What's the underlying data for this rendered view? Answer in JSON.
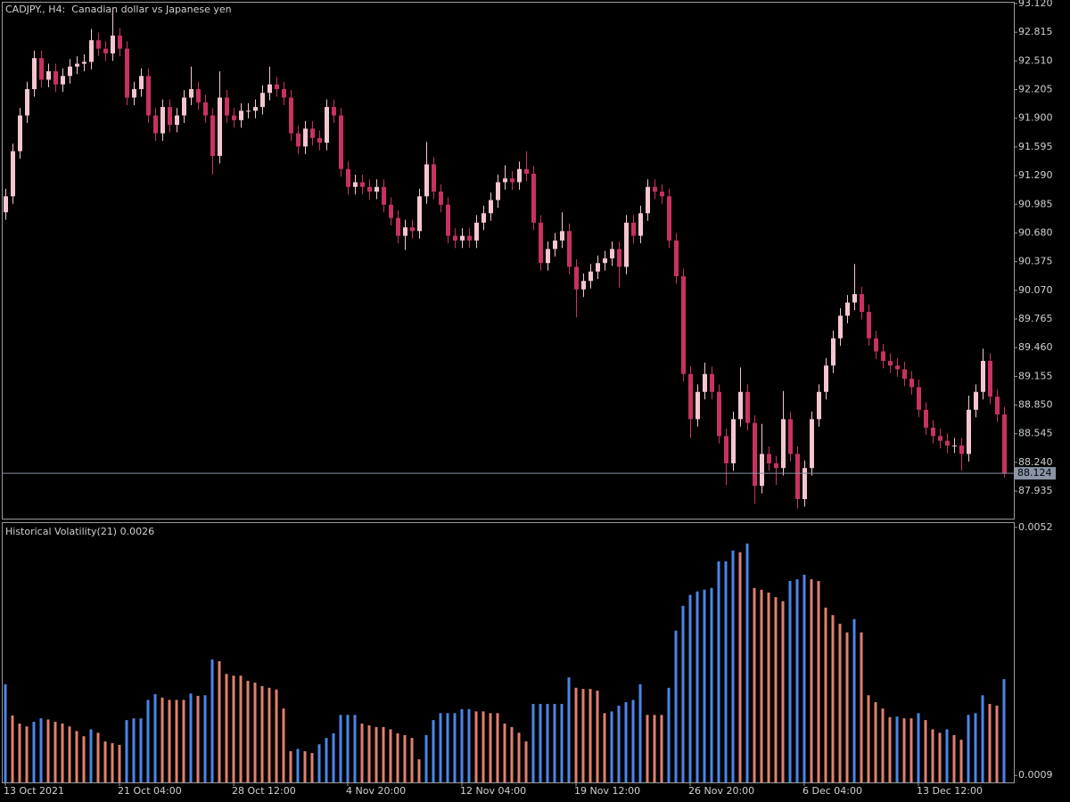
{
  "chart_data": [
    {
      "type": "candlestick",
      "title": "CADJPY., H4:  Canadian dollar vs Japanese yen",
      "open": [
        90.9,
        91.07,
        91.55,
        91.93,
        92.21,
        92.54,
        92.31,
        92.4,
        92.26,
        92.35,
        92.45,
        92.48,
        92.5,
        92.73,
        92.64,
        92.59,
        92.78,
        92.64,
        92.12,
        92.21,
        92.35,
        91.93,
        91.74,
        92.02,
        91.83,
        91.93,
        92.12,
        92.21,
        92.07,
        91.93,
        91.5,
        92.12,
        91.93,
        91.88,
        91.98,
        91.98,
        92.02,
        92.17,
        92.26,
        92.21,
        92.12,
        91.74,
        91.6,
        91.79,
        91.69,
        91.64,
        92.02,
        91.93,
        91.36,
        91.17,
        91.22,
        91.17,
        91.12,
        91.17,
        90.98,
        90.84,
        90.65,
        90.74,
        90.7,
        91.07,
        91.41,
        91.12,
        90.98,
        90.65,
        90.6,
        90.65,
        90.6,
        90.79,
        90.89,
        91.03,
        91.22,
        91.26,
        91.22,
        91.36,
        91.31,
        90.79,
        90.36,
        90.51,
        90.6,
        90.7,
        90.32,
        90.08,
        90.17,
        90.27,
        90.36,
        90.41,
        90.51,
        90.32,
        90.79,
        90.65,
        90.89,
        91.17,
        91.12,
        91.07,
        90.6,
        90.22,
        89.18,
        88.7,
        88.99,
        89.18,
        88.99,
        88.52,
        88.23,
        88.7,
        88.99,
        88.66,
        87.99,
        88.33,
        88.23,
        88.18,
        88.7,
        88.33,
        87.85,
        88.18,
        88.7,
        88.99,
        89.27,
        89.56,
        89.8,
        89.94,
        90.03,
        89.84,
        89.56,
        89.42,
        89.32,
        89.27,
        89.23,
        89.13,
        89.04,
        88.8,
        88.61,
        88.52,
        88.47,
        88.42,
        88.42,
        88.33,
        88.8,
        88.99,
        89.32,
        88.94,
        88.75
      ],
      "high": [
        91.15,
        91.63,
        92.01,
        92.29,
        92.62,
        92.62,
        92.48,
        92.48,
        92.43,
        92.53,
        92.56,
        92.58,
        92.85,
        92.81,
        92.72,
        93.05,
        92.86,
        92.72,
        92.29,
        92.43,
        92.43,
        92.01,
        92.1,
        92.1,
        92.01,
        92.2,
        92.45,
        92.29,
        92.15,
        92.01,
        92.4,
        92.2,
        92.01,
        92.06,
        92.06,
        92.1,
        92.25,
        92.45,
        92.34,
        92.29,
        92.2,
        91.82,
        91.87,
        91.87,
        91.77,
        92.1,
        92.1,
        92.01,
        91.44,
        91.3,
        91.3,
        91.25,
        91.25,
        91.25,
        91.06,
        90.92,
        90.82,
        90.82,
        91.15,
        91.65,
        91.49,
        91.2,
        91.06,
        90.73,
        90.73,
        90.73,
        90.87,
        90.97,
        91.11,
        91.3,
        91.4,
        91.34,
        91.44,
        91.55,
        91.39,
        90.87,
        90.59,
        90.68,
        90.9,
        90.78,
        90.4,
        90.25,
        90.35,
        90.44,
        90.49,
        90.59,
        90.59,
        90.87,
        90.87,
        90.97,
        91.25,
        91.25,
        91.2,
        91.15,
        90.68,
        90.3,
        89.26,
        89.07,
        89.3,
        89.26,
        89.07,
        88.6,
        88.78,
        89.25,
        89.07,
        88.74,
        88.65,
        88.41,
        88.31,
        89.0,
        88.78,
        88.41,
        88.26,
        88.78,
        89.07,
        89.35,
        89.64,
        89.88,
        90.02,
        90.35,
        90.11,
        89.92,
        89.64,
        89.5,
        89.4,
        89.35,
        89.31,
        89.21,
        89.12,
        88.88,
        88.69,
        88.6,
        88.55,
        88.5,
        88.5,
        88.95,
        89.07,
        89.45,
        89.4,
        89.02,
        88.83
      ],
      "low": [
        90.82,
        90.99,
        91.47,
        91.85,
        92.13,
        92.23,
        92.23,
        92.18,
        92.18,
        92.27,
        92.37,
        92.4,
        92.42,
        92.56,
        92.51,
        92.51,
        92.56,
        92.04,
        92.04,
        92.13,
        91.85,
        91.66,
        91.66,
        91.75,
        91.75,
        91.85,
        92.04,
        91.99,
        91.85,
        91.3,
        91.42,
        91.85,
        91.8,
        91.8,
        91.9,
        91.9,
        91.94,
        92.09,
        92.13,
        92.04,
        91.66,
        91.52,
        91.52,
        91.61,
        91.56,
        91.56,
        91.85,
        91.28,
        91.09,
        91.09,
        91.09,
        91.04,
        91.04,
        90.9,
        90.76,
        90.57,
        90.5,
        90.62,
        90.62,
        90.99,
        91.04,
        90.9,
        90.57,
        90.52,
        90.52,
        90.52,
        90.52,
        90.71,
        90.81,
        90.95,
        91.14,
        91.14,
        91.14,
        91.23,
        90.71,
        90.28,
        90.28,
        90.43,
        90.52,
        90.24,
        89.78,
        90.0,
        90.09,
        90.19,
        90.28,
        90.33,
        90.1,
        90.24,
        90.57,
        90.57,
        90.81,
        91.04,
        90.99,
        90.52,
        90.14,
        89.1,
        88.5,
        88.62,
        88.91,
        88.91,
        88.44,
        88.0,
        88.15,
        88.62,
        88.58,
        87.8,
        87.91,
        88.15,
        88.0,
        88.1,
        88.25,
        87.75,
        87.77,
        88.1,
        88.62,
        88.91,
        89.19,
        89.48,
        89.72,
        89.86,
        89.76,
        89.48,
        89.34,
        89.24,
        89.19,
        89.15,
        89.05,
        88.96,
        88.72,
        88.53,
        88.44,
        88.39,
        88.34,
        88.34,
        88.15,
        88.25,
        88.72,
        88.91,
        88.86,
        88.67,
        88.08
      ],
      "close": [
        91.07,
        91.55,
        91.93,
        92.21,
        92.54,
        92.31,
        92.4,
        92.26,
        92.35,
        92.45,
        92.48,
        92.5,
        92.73,
        92.64,
        92.59,
        92.78,
        92.64,
        92.12,
        92.21,
        92.35,
        91.93,
        91.74,
        92.02,
        91.83,
        91.93,
        92.12,
        92.21,
        92.07,
        91.93,
        91.5,
        92.12,
        91.93,
        91.88,
        91.98,
        91.98,
        92.02,
        92.17,
        92.26,
        92.21,
        92.12,
        91.74,
        91.6,
        91.79,
        91.69,
        91.64,
        92.02,
        91.93,
        91.36,
        91.17,
        91.22,
        91.17,
        91.12,
        91.17,
        90.98,
        90.84,
        90.65,
        90.74,
        90.7,
        91.07,
        91.41,
        91.12,
        90.98,
        90.65,
        90.6,
        90.65,
        90.6,
        90.79,
        90.89,
        91.03,
        91.22,
        91.26,
        91.22,
        91.36,
        91.31,
        90.79,
        90.36,
        90.51,
        90.6,
        90.7,
        90.32,
        90.08,
        90.17,
        90.27,
        90.36,
        90.41,
        90.51,
        90.32,
        90.79,
        90.65,
        90.89,
        91.17,
        91.12,
        91.07,
        90.6,
        90.22,
        89.18,
        88.7,
        88.99,
        89.18,
        88.99,
        88.52,
        88.23,
        88.7,
        88.99,
        88.66,
        87.99,
        88.33,
        88.23,
        88.18,
        88.7,
        88.33,
        87.85,
        88.18,
        88.7,
        88.99,
        89.27,
        89.56,
        89.8,
        89.94,
        90.03,
        89.84,
        89.56,
        89.42,
        89.32,
        89.27,
        89.23,
        89.13,
        89.04,
        88.8,
        88.61,
        88.52,
        88.47,
        88.42,
        88.42,
        88.33,
        88.8,
        88.99,
        89.32,
        88.94,
        88.75,
        88.12
      ],
      "up_color": "#f5c6cf",
      "down_color": "#c8325f",
      "ylim": [
        87.642,
        93.139
      ],
      "yticks": [
        {
          "value": 93.12,
          "label": "93.120"
        },
        92.815,
        {
          "value": 92.51,
          "label": "92.510"
        },
        92.205,
        {
          "value": 91.9,
          "label": "91.900"
        },
        91.595,
        {
          "value": 91.29,
          "label": "91.290"
        },
        90.985,
        {
          "value": 90.68,
          "label": "90.680"
        },
        90.375,
        {
          "value": 90.07,
          "label": "90.070"
        },
        89.765,
        {
          "value": 89.46,
          "label": "89.460"
        },
        89.155,
        {
          "value": 88.85,
          "label": "88.850"
        },
        88.545,
        {
          "value": 88.24,
          "label": "88.240"
        },
        87.935
      ],
      "current_price": 88.124,
      "current_price_color": "#8a94a6"
    },
    {
      "type": "bar",
      "title": "Historical Volatility(21) 0.0026",
      "categories": [
        "13 Oct 2021",
        null,
        null,
        null,
        null,
        null,
        null,
        null,
        null,
        null,
        null,
        null,
        null,
        null,
        null,
        null,
        "21 Oct 04:00",
        null,
        null,
        null,
        null,
        null,
        null,
        null,
        null,
        null,
        null,
        null,
        null,
        null,
        null,
        null,
        "28 Oct 12:00",
        null,
        null,
        null,
        null,
        null,
        null,
        null,
        null,
        null,
        null,
        null,
        null,
        null,
        null,
        null,
        "4 Nov 20:00",
        null,
        null,
        null,
        null,
        null,
        null,
        null,
        null,
        null,
        null,
        null,
        null,
        null,
        null,
        null,
        "12 Nov 04:00",
        null,
        null,
        null,
        null,
        null,
        null,
        null,
        null,
        null,
        null,
        null,
        null,
        null,
        null,
        null,
        "19 Nov 12:00",
        null,
        null,
        null,
        null,
        null,
        null,
        null,
        null,
        null,
        null,
        null,
        null,
        null,
        null,
        null,
        "26 Nov 20:00",
        null,
        null,
        null,
        null,
        null,
        null,
        null,
        null,
        null,
        null,
        null,
        null,
        null,
        null,
        null,
        "6 Dec 04:00",
        null,
        null,
        null,
        null,
        null,
        null,
        null,
        null,
        null,
        null,
        null,
        null,
        null,
        null,
        null,
        "13 Dec 12:00",
        null,
        null,
        null,
        null,
        null,
        null,
        null,
        null,
        null,
        null,
        null,
        null
      ],
      "values": [
        0.00248,
        0.00194,
        0.0018,
        0.00175,
        0.00183,
        0.00189,
        0.00187,
        0.00183,
        0.0018,
        0.00175,
        0.00167,
        0.00158,
        0.0017,
        0.00164,
        0.00149,
        0.00146,
        0.00143,
        0.00186,
        0.00189,
        0.00189,
        0.00221,
        0.00231,
        0.00225,
        0.00221,
        0.00221,
        0.00221,
        0.00232,
        0.00228,
        0.00229,
        0.00291,
        0.00288,
        0.00266,
        0.00263,
        0.00263,
        0.00254,
        0.00251,
        0.00245,
        0.00242,
        0.00239,
        0.00206,
        0.00132,
        0.00136,
        0.00132,
        0.00129,
        0.00144,
        0.00155,
        0.00163,
        0.00195,
        0.00195,
        0.00195,
        0.0018,
        0.00177,
        0.00174,
        0.00174,
        0.0017,
        0.00163,
        0.0016,
        0.00155,
        0.00118,
        0.0016,
        0.00186,
        0.00198,
        0.00198,
        0.00198,
        0.00205,
        0.00205,
        0.00201,
        0.00201,
        0.00198,
        0.00198,
        0.0018,
        0.00174,
        0.00164,
        0.00149,
        0.00214,
        0.00214,
        0.00214,
        0.00214,
        0.00214,
        0.0026,
        0.00242,
        0.0024,
        0.0024,
        0.00237,
        0.00198,
        0.00201,
        0.00211,
        0.00217,
        0.00221,
        0.00248,
        0.00195,
        0.00195,
        0.00195,
        0.00242,
        0.00341,
        0.00384,
        0.00403,
        0.00409,
        0.00412,
        0.00415,
        0.00461,
        0.00461,
        0.0048,
        0.00477,
        0.00492,
        0.00415,
        0.00412,
        0.00407,
        0.00399,
        0.00392,
        0.00427,
        0.0043,
        0.00438,
        0.0043,
        0.00427,
        0.00381,
        0.00368,
        0.00353,
        0.00338,
        0.00361,
        0.00338,
        0.00229,
        0.00217,
        0.00206,
        0.00191,
        0.00192,
        0.00189,
        0.00189,
        0.00198,
        0.00186,
        0.0017,
        0.00164,
        0.0017,
        0.0016,
        0.00152,
        0.00195,
        0.00198,
        0.00229,
        0.00214,
        0.00211,
        0.00257
      ],
      "up_color": "#4a86e8",
      "down_color": "#e0806e",
      "ylim": [
        0.00078,
        0.00529
      ],
      "yticks": [
        0.0052,
        0.0009
      ]
    }
  ]
}
